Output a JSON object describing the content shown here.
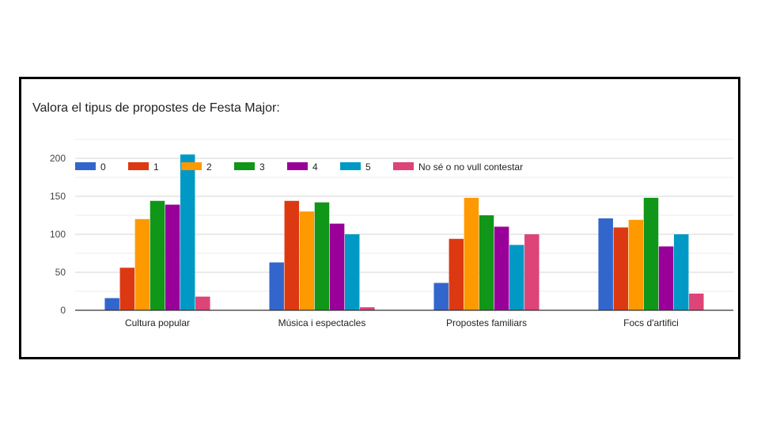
{
  "chart_data": {
    "type": "bar",
    "title": "Valora el tipus de propostes de Festa Major:",
    "categories": [
      "Cultura popular",
      "Música i espectacles",
      "Propostes familiars",
      "Focs d'artifici"
    ],
    "series": [
      {
        "name": "0",
        "color": "#3366cc",
        "values": [
          16,
          63,
          36,
          121
        ]
      },
      {
        "name": "1",
        "color": "#dc3912",
        "values": [
          56,
          144,
          94,
          109
        ]
      },
      {
        "name": "2",
        "color": "#ff9900",
        "values": [
          120,
          130,
          148,
          119
        ]
      },
      {
        "name": "3",
        "color": "#109618",
        "values": [
          144,
          142,
          125,
          148
        ]
      },
      {
        "name": "4",
        "color": "#990099",
        "values": [
          139,
          114,
          110,
          84
        ]
      },
      {
        "name": "5",
        "color": "#0099c6",
        "values": [
          205,
          100,
          86,
          100
        ]
      },
      {
        "name": "No sé o no vull contestar",
        "color": "#dd4477",
        "values": [
          18,
          4,
          100,
          22
        ]
      }
    ],
    "yticks": [
      0,
      50,
      100,
      150,
      200
    ],
    "ylim": [
      0,
      205
    ],
    "grid": true,
    "legend": "top"
  }
}
